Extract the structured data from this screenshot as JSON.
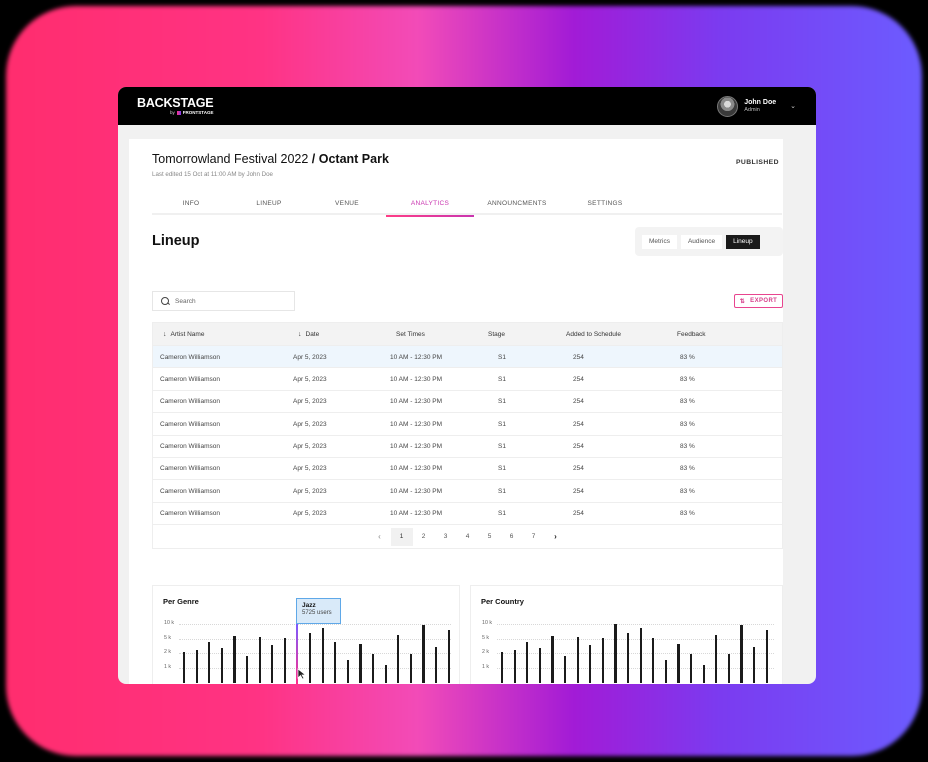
{
  "app": {
    "brand": "BACKSTAGE",
    "brand_sub_by": "by",
    "brand_sub": "FRONTSTAGE",
    "user": {
      "name": "John Doe",
      "role": "Admin"
    }
  },
  "event": {
    "title_regular": "Tomorrowland Festival 2022 ",
    "title_bold": "/ Octant Park",
    "last_edited": "Last edited 15 Oct at 11:00 AM by John Doe",
    "status": "PUBLISHED"
  },
  "tabs": [
    {
      "label": "INFO",
      "active": false
    },
    {
      "label": "LINEUP",
      "active": false
    },
    {
      "label": "VENUE",
      "active": false
    },
    {
      "label": "ANALYTICS",
      "active": true
    },
    {
      "label": "ANNOUNCMENTS",
      "active": false
    },
    {
      "label": "SETTINGS",
      "active": false
    }
  ],
  "section": {
    "title": "Lineup",
    "segments": [
      {
        "label": "Metrics",
        "active": false
      },
      {
        "label": "Audience",
        "active": false
      },
      {
        "label": "Lineup",
        "active": true
      }
    ]
  },
  "search": {
    "placeholder": "Search",
    "value": ""
  },
  "export": {
    "label": "EXPORT"
  },
  "table": {
    "columns": [
      {
        "label": "Artist Name",
        "sortable": true
      },
      {
        "label": "Date",
        "sortable": true
      },
      {
        "label": "Set Times",
        "sortable": false
      },
      {
        "label": "Stage",
        "sortable": false
      },
      {
        "label": "Added to Schedule",
        "sortable": false
      },
      {
        "label": "Feedback",
        "sortable": false
      }
    ],
    "rows": [
      {
        "artist": "Cameron Williamson",
        "date": "Apr 5, 2023",
        "set_times": "10 AM - 12:30 PM",
        "stage": "S1",
        "added": "254",
        "feedback": "83 %"
      },
      {
        "artist": "Cameron Williamson",
        "date": "Apr 5, 2023",
        "set_times": "10 AM - 12:30 PM",
        "stage": "S1",
        "added": "254",
        "feedback": "83 %"
      },
      {
        "artist": "Cameron Williamson",
        "date": "Apr 5, 2023",
        "set_times": "10 AM - 12:30 PM",
        "stage": "S1",
        "added": "254",
        "feedback": "83 %"
      },
      {
        "artist": "Cameron Williamson",
        "date": "Apr 5, 2023",
        "set_times": "10 AM - 12:30 PM",
        "stage": "S1",
        "added": "254",
        "feedback": "83 %"
      },
      {
        "artist": "Cameron Williamson",
        "date": "Apr 5, 2023",
        "set_times": "10 AM - 12:30 PM",
        "stage": "S1",
        "added": "254",
        "feedback": "83 %"
      },
      {
        "artist": "Cameron Williamson",
        "date": "Apr 5, 2023",
        "set_times": "10 AM - 12:30 PM",
        "stage": "S1",
        "added": "254",
        "feedback": "83 %"
      },
      {
        "artist": "Cameron Williamson",
        "date": "Apr 5, 2023",
        "set_times": "10 AM - 12:30 PM",
        "stage": "S1",
        "added": "254",
        "feedback": "83 %"
      },
      {
        "artist": "Cameron Williamson",
        "date": "Apr 5, 2023",
        "set_times": "10 AM - 12:30 PM",
        "stage": "S1",
        "added": "254",
        "feedback": "83 %"
      }
    ],
    "pagination": {
      "prev": "‹",
      "pages": [
        "1",
        "2",
        "3",
        "4",
        "5",
        "6",
        "7"
      ],
      "current": "1",
      "next": "›"
    }
  },
  "charts": {
    "per_genre": {
      "title": "Per Genre",
      "tooltip": {
        "label": "Jazz",
        "value": "5725 users"
      }
    },
    "per_country": {
      "title": "Per Country"
    }
  },
  "chart_data": [
    {
      "type": "bar",
      "title": "Per Genre",
      "ylabel": "",
      "xlabel": "",
      "y_ticks": [
        "1 k",
        "2 k",
        "5 k",
        "10 k"
      ],
      "y_scale": "log",
      "ylim": [
        500,
        10000
      ],
      "grid": true,
      "highlight": {
        "index": 9,
        "label": "Jazz",
        "value": 5725,
        "tooltip": "5725 users"
      },
      "values": [
        2300,
        2500,
        3800,
        2900,
        5400,
        1900,
        5000,
        3400,
        4800,
        5725,
        6400,
        8200,
        3800,
        1500,
        3500,
        2100,
        1200,
        5600,
        2100,
        9300,
        3000,
        7200
      ]
    },
    {
      "type": "bar",
      "title": "Per Country",
      "ylabel": "",
      "xlabel": "",
      "y_ticks": [
        "1 k",
        "2 k",
        "5 k",
        "10 k"
      ],
      "y_scale": "log",
      "ylim": [
        500,
        10000
      ],
      "grid": true,
      "values": [
        2300,
        2500,
        3800,
        2900,
        5400,
        1900,
        5000,
        3400,
        4800,
        10000,
        6400,
        8200,
        4800,
        1500,
        3500,
        2100,
        1200,
        5600,
        2100,
        9300,
        3000,
        7200
      ]
    }
  ]
}
